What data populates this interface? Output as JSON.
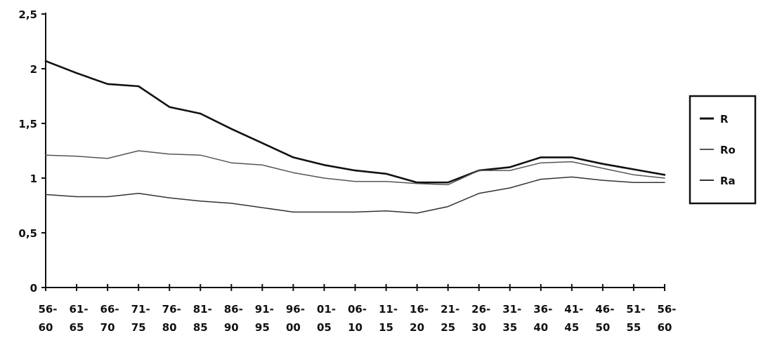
{
  "chart_data": {
    "type": "line",
    "categories": [
      "56-60",
      "61-65",
      "66-70",
      "71-75",
      "76-80",
      "81-85",
      "86-90",
      "91-95",
      "96-00",
      "01-05",
      "06-10",
      "11-15",
      "16-20",
      "21-25",
      "26-30",
      "31-35",
      "36-40",
      "41-45",
      "46-50",
      "51-55",
      "56-60"
    ],
    "category_labels_top": [
      "56-",
      "61-",
      "66-",
      "71-",
      "76-",
      "81-",
      "86-",
      "91-",
      "96-",
      "01-",
      "06-",
      "11-",
      "16-",
      "21-",
      "26-",
      "31-",
      "36-",
      "41-",
      "46-",
      "51-",
      "56-"
    ],
    "category_labels_bottom": [
      "60",
      "65",
      "70",
      "75",
      "80",
      "85",
      "90",
      "95",
      "00",
      "05",
      "10",
      "15",
      "20",
      "25",
      "30",
      "35",
      "40",
      "45",
      "50",
      "55",
      "60"
    ],
    "series": [
      {
        "name": "R",
        "color": "#111111",
        "width": 2.6,
        "values": [
          2.07,
          1.96,
          1.86,
          1.84,
          1.65,
          1.59,
          1.45,
          1.32,
          1.19,
          1.12,
          1.07,
          1.04,
          0.96,
          0.96,
          1.07,
          1.1,
          1.19,
          1.19,
          1.13,
          1.08,
          1.03
        ]
      },
      {
        "name": "Ro",
        "color": "#555555",
        "width": 1.5,
        "values": [
          1.21,
          1.2,
          1.18,
          1.25,
          1.22,
          1.21,
          1.14,
          1.12,
          1.05,
          1.0,
          0.97,
          0.97,
          0.95,
          0.94,
          1.07,
          1.07,
          1.14,
          1.15,
          1.09,
          1.03,
          1.0
        ]
      },
      {
        "name": "Ra",
        "color": "#333333",
        "width": 1.5,
        "values": [
          0.85,
          0.83,
          0.83,
          0.86,
          0.82,
          0.79,
          0.77,
          0.73,
          0.69,
          0.69,
          0.69,
          0.7,
          0.68,
          0.74,
          0.86,
          0.91,
          0.99,
          1.01,
          0.98,
          0.96,
          0.96
        ]
      }
    ],
    "yticks": [
      "0",
      "0,5",
      "1",
      "1,5",
      "2",
      "2,5"
    ],
    "ytick_values": [
      0,
      0.5,
      1,
      1.5,
      2,
      2.5
    ],
    "ylim": [
      0,
      2.5
    ],
    "legend_position": "right",
    "grid": false,
    "title": "",
    "xlabel": "",
    "ylabel": ""
  }
}
